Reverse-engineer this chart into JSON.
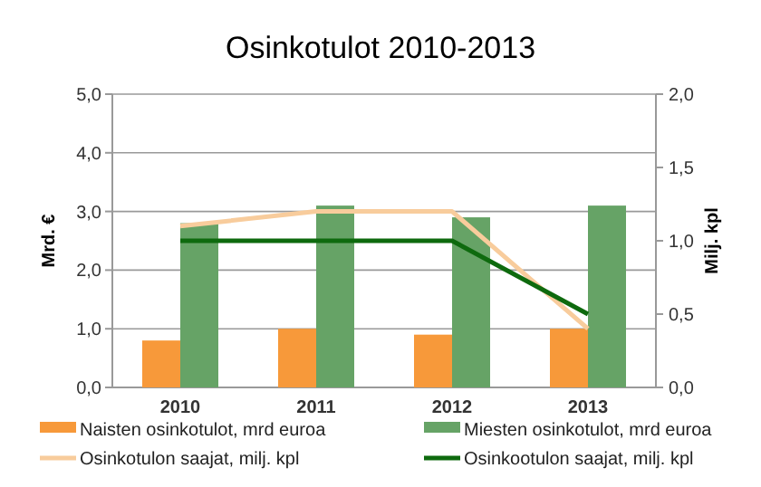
{
  "chart_data": {
    "type": "bar",
    "title": "Osinkotulot 2010-2013",
    "categories": [
      "2010",
      "2011",
      "2012",
      "2013"
    ],
    "ylabel": "Mrd. €",
    "y2label": "Milj. kpl",
    "series": [
      {
        "name": "Naisten osinkotulot, mrd  euroa",
        "color": "#f7993a",
        "values": [
          0.8,
          1.0,
          0.9,
          1.0
        ]
      },
      {
        "name": "Miesten osinkotulot, mrd  euroa",
        "color": "#66a366",
        "values": [
          2.8,
          3.1,
          2.9,
          3.1
        ]
      },
      {
        "name": "Osinkotulon saajat, milj. kpl",
        "type": "line",
        "axis": "y2",
        "color": "#f8cc9c",
        "values": [
          1.1,
          1.2,
          1.2,
          0.4
        ]
      },
      {
        "name": "Osinkootulon saajat, milj. kpl",
        "type": "line",
        "axis": "y2",
        "color": "#0e6a0e",
        "values": [
          1.0,
          1.0,
          1.0,
          0.5
        ]
      }
    ],
    "ylim": [
      0,
      5
    ],
    "yticks": [
      {
        "value": 0,
        "label": "0,0"
      },
      {
        "value": 1,
        "label": "1,0"
      },
      {
        "value": 2,
        "label": "2,0"
      },
      {
        "value": 3,
        "label": "3,0"
      },
      {
        "value": 4,
        "label": "4,0"
      },
      {
        "value": 5,
        "label": "5,0"
      }
    ],
    "y2lim": [
      0,
      2
    ],
    "y2ticks": [
      {
        "value": 0,
        "label": "0,0"
      },
      {
        "value": 0.5,
        "label": "0,5"
      },
      {
        "value": 1,
        "label": "1,0"
      },
      {
        "value": 1.5,
        "label": "1,5"
      },
      {
        "value": 2,
        "label": "2,0"
      }
    ],
    "grid": "y",
    "legend": "bottom"
  }
}
